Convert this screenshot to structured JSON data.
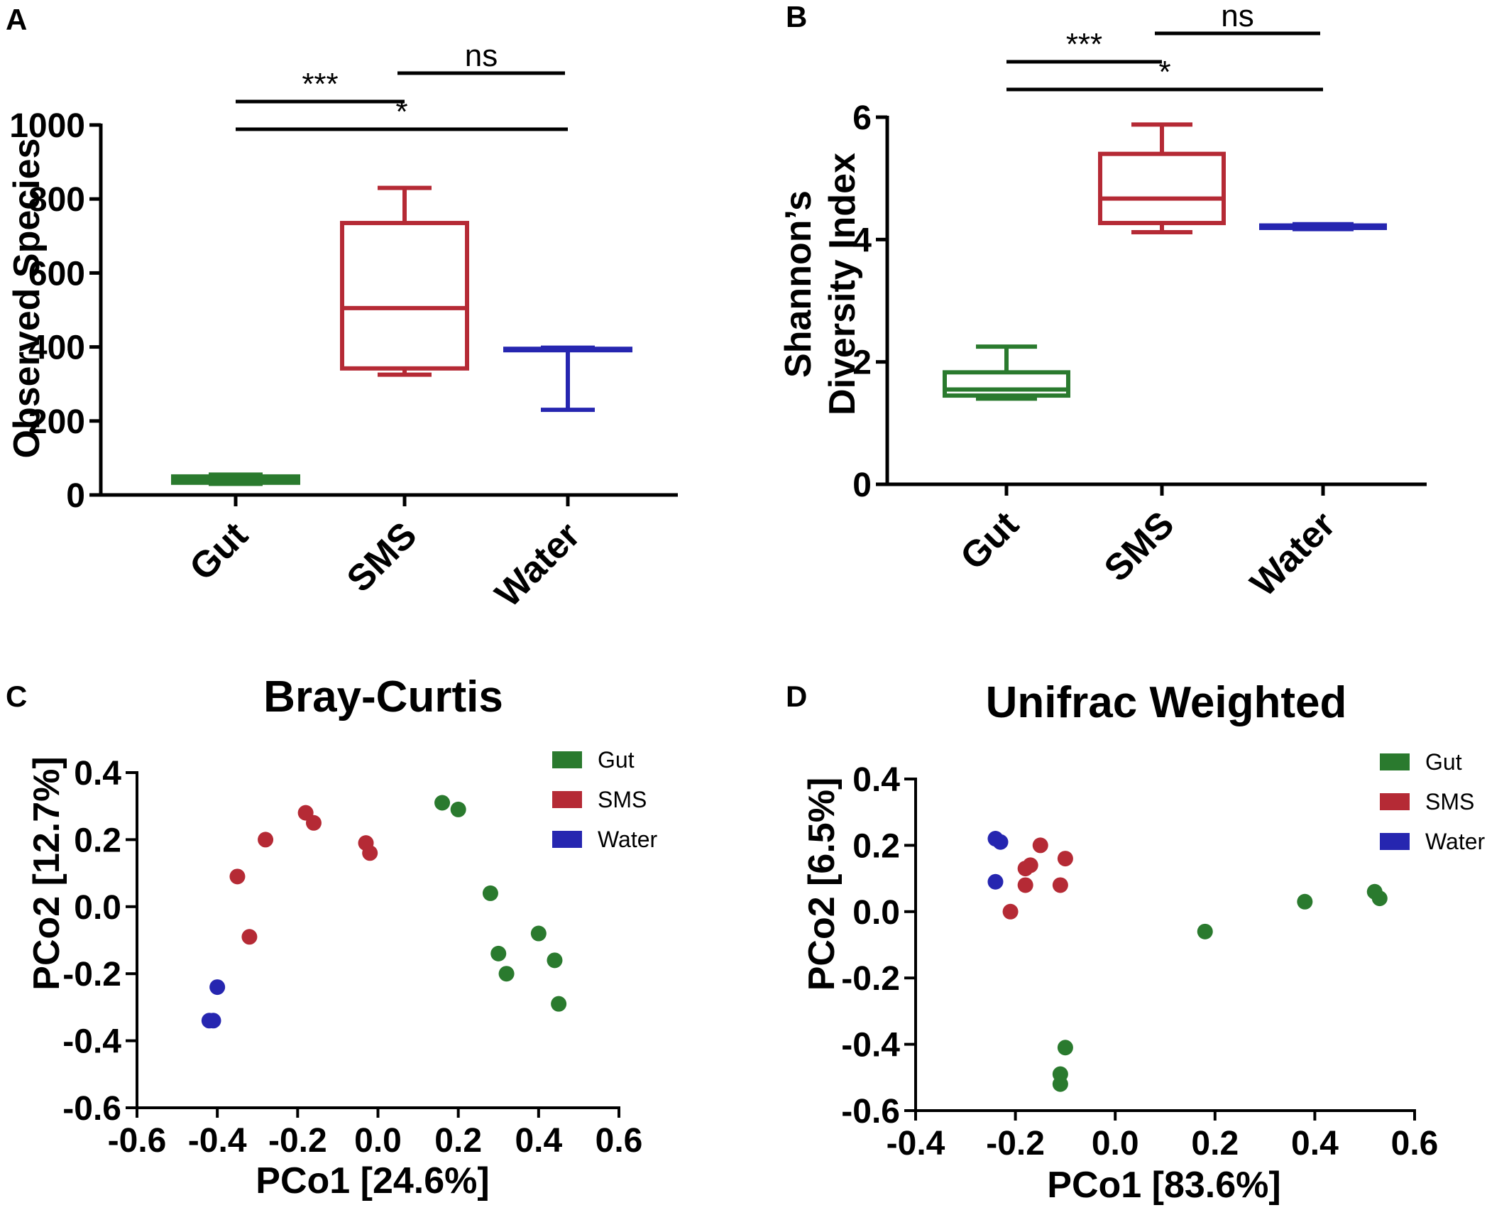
{
  "figure": {
    "panel_labels": [
      "A",
      "B",
      "C",
      "D"
    ]
  },
  "chart_data": [
    {
      "id": "A",
      "type": "box",
      "title": "",
      "xlabel": "",
      "ylabel": "Observed Species",
      "ylim": [
        0,
        1000
      ],
      "yticks": [
        "0",
        "200",
        "400",
        "600",
        "800",
        "1000"
      ],
      "categories": [
        "Gut",
        "SMS",
        "Water"
      ],
      "colors": [
        "#2a7a2e",
        "#b52a35",
        "#2626b0"
      ],
      "boxes": [
        {
          "name": "Gut",
          "min": 30,
          "q1": 33,
          "median": 40,
          "q3": 50,
          "max": 55
        },
        {
          "name": "SMS",
          "min": 325,
          "q1": 342,
          "median": 505,
          "q3": 735,
          "max": 830
        },
        {
          "name": "Water",
          "min": 230,
          "q1": 393,
          "median": 393,
          "q3": 395,
          "max": 398
        }
      ],
      "significance": [
        {
          "from": "Gut",
          "to": "SMS",
          "label": "***",
          "level": 1
        },
        {
          "from": "SMS",
          "to": "Water",
          "label": "ns",
          "level": 2
        },
        {
          "from": "Gut",
          "to": "Water",
          "label": "*",
          "level": 0
        }
      ]
    },
    {
      "id": "B",
      "type": "box",
      "title": "",
      "xlabel": "",
      "ylabel": [
        "Shannon’s",
        "Diversity Index"
      ],
      "ylim": [
        0,
        6
      ],
      "yticks": [
        "0",
        "2",
        "4",
        "6"
      ],
      "categories": [
        "Gut",
        "SMS",
        "Water"
      ],
      "colors": [
        "#2a7a2e",
        "#b52a35",
        "#2626b0"
      ],
      "boxes": [
        {
          "name": "Gut",
          "min": 1.4,
          "q1": 1.45,
          "median": 1.55,
          "q3": 1.83,
          "max": 2.25
        },
        {
          "name": "SMS",
          "min": 4.12,
          "q1": 4.27,
          "median": 4.67,
          "q3": 5.4,
          "max": 5.88
        },
        {
          "name": "Water",
          "min": 4.17,
          "q1": 4.19,
          "median": 4.21,
          "q3": 4.23,
          "max": 4.25
        }
      ],
      "significance": [
        {
          "from": "Gut",
          "to": "SMS",
          "label": "***",
          "level": 1
        },
        {
          "from": "SMS",
          "to": "Water",
          "label": "ns",
          "level": 2
        },
        {
          "from": "Gut",
          "to": "Water",
          "label": "*",
          "level": 0
        }
      ]
    },
    {
      "id": "C",
      "type": "scatter",
      "title": "Bray-Curtis",
      "xlabel": "PCo1 [24.6%]",
      "ylabel": "PCo2 [12.7%]",
      "xlim": [
        -0.6,
        0.6
      ],
      "ylim": [
        -0.6,
        0.4
      ],
      "xticks": [
        "-0.6",
        "-0.4",
        "-0.2",
        "0.0",
        "0.2",
        "0.4",
        "0.6"
      ],
      "yticks": [
        "-0.6",
        "-0.4",
        "-0.2",
        "0.0",
        "0.2",
        "0.4"
      ],
      "legend_position": "top-right",
      "series": [
        {
          "name": "Gut",
          "color": "#2a7a2e",
          "points": [
            [
              0.16,
              0.31
            ],
            [
              0.2,
              0.29
            ],
            [
              0.28,
              0.04
            ],
            [
              0.3,
              -0.14
            ],
            [
              0.32,
              -0.2
            ],
            [
              0.4,
              -0.08
            ],
            [
              0.44,
              -0.16
            ],
            [
              0.45,
              -0.29
            ]
          ]
        },
        {
          "name": "SMS",
          "color": "#b52a35",
          "points": [
            [
              -0.35,
              0.09
            ],
            [
              -0.28,
              0.2
            ],
            [
              -0.18,
              0.28
            ],
            [
              -0.16,
              0.25
            ],
            [
              -0.03,
              0.19
            ],
            [
              -0.02,
              0.16
            ],
            [
              -0.32,
              -0.09
            ]
          ]
        },
        {
          "name": "Water",
          "color": "#2626b0",
          "points": [
            [
              -0.4,
              -0.24
            ],
            [
              -0.42,
              -0.34
            ],
            [
              -0.41,
              -0.34
            ]
          ]
        }
      ]
    },
    {
      "id": "D",
      "type": "scatter",
      "title": "Unifrac Weighted",
      "xlabel": "PCo1 [83.6%]",
      "ylabel": "PCo2 [6.5%]",
      "xlim": [
        -0.4,
        0.6
      ],
      "ylim": [
        -0.6,
        0.4
      ],
      "xticks": [
        "-0.4",
        "-0.2",
        "0.0",
        "0.2",
        "0.4",
        "0.6"
      ],
      "yticks": [
        "-0.6",
        "-0.4",
        "-0.2",
        "0.0",
        "0.2",
        "0.4"
      ],
      "legend_position": "top-right",
      "series": [
        {
          "name": "Gut",
          "color": "#2a7a2e",
          "points": [
            [
              0.18,
              -0.06
            ],
            [
              0.38,
              0.03
            ],
            [
              0.52,
              0.06
            ],
            [
              0.53,
              0.04
            ],
            [
              -0.1,
              -0.41
            ],
            [
              -0.11,
              -0.49
            ],
            [
              -0.11,
              -0.52
            ]
          ]
        },
        {
          "name": "SMS",
          "color": "#b52a35",
          "points": [
            [
              -0.15,
              0.2
            ],
            [
              -0.1,
              0.16
            ],
            [
              -0.17,
              0.14
            ],
            [
              -0.18,
              0.13
            ],
            [
              -0.18,
              0.08
            ],
            [
              -0.11,
              0.08
            ],
            [
              -0.21,
              0.0
            ]
          ]
        },
        {
          "name": "Water",
          "color": "#2626b0",
          "points": [
            [
              -0.24,
              0.22
            ],
            [
              -0.23,
              0.21
            ],
            [
              -0.24,
              0.09
            ]
          ]
        }
      ]
    }
  ]
}
